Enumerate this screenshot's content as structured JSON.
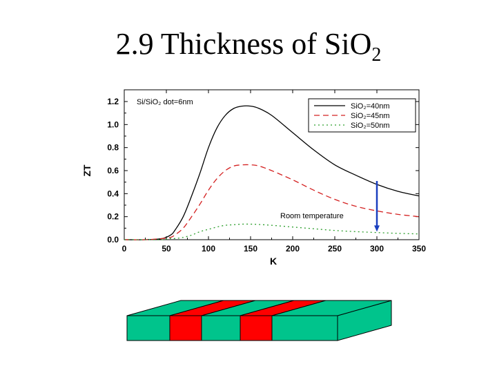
{
  "slide": {
    "title_main": "2.9 Thickness of SiO",
    "title_sub": "2"
  },
  "chart_data": {
    "type": "line",
    "title": "",
    "annotation_top_left": "Si/SiO₂ dot=6nm",
    "annotation_arrow": "Room temperature",
    "arrow_x": 300,
    "arrow_y_from": 0.51,
    "arrow_y_to": 0.07,
    "xlabel": "K",
    "ylabel": "ZT",
    "xlim": [
      0,
      350
    ],
    "ylim": [
      0,
      1.2
    ],
    "x_ticks": [
      0,
      50,
      100,
      150,
      200,
      250,
      300,
      350
    ],
    "y_ticks": [
      0.0,
      0.2,
      0.4,
      0.6,
      0.8,
      1.0,
      1.2
    ],
    "x_tick_labels": [
      "0",
      "50",
      "100",
      "150",
      "200",
      "250",
      "300",
      "350"
    ],
    "y_tick_labels": [
      "0.0",
      "0.2",
      "0.4",
      "0.6",
      "0.8",
      "1.0",
      "1.2"
    ],
    "legend_position": "top-right",
    "x": [
      0,
      25,
      45,
      55,
      60,
      70,
      80,
      90,
      100,
      110,
      120,
      130,
      140,
      150,
      160,
      175,
      200,
      225,
      250,
      275,
      300,
      325,
      350
    ],
    "series": [
      {
        "name": "SiO₂=40nm",
        "color": "#000000",
        "dash": "solid",
        "values": [
          0.0,
          0.0,
          0.01,
          0.04,
          0.08,
          0.2,
          0.38,
          0.58,
          0.8,
          0.97,
          1.08,
          1.14,
          1.16,
          1.16,
          1.14,
          1.08,
          0.93,
          0.78,
          0.65,
          0.56,
          0.48,
          0.42,
          0.38
        ]
      },
      {
        "name": "SiO₂=45nm",
        "color": "#d42020",
        "dash": "dashed",
        "values": [
          0.0,
          0.0,
          0.01,
          0.02,
          0.04,
          0.1,
          0.2,
          0.31,
          0.43,
          0.53,
          0.6,
          0.64,
          0.65,
          0.65,
          0.64,
          0.6,
          0.52,
          0.43,
          0.35,
          0.29,
          0.25,
          0.22,
          0.2
        ]
      },
      {
        "name": "SiO₂=50nm",
        "color": "#2a9d2a",
        "dash": "dotted",
        "values": [
          0.0,
          0.0,
          0.0,
          0.01,
          0.01,
          0.02,
          0.04,
          0.07,
          0.09,
          0.11,
          0.125,
          0.13,
          0.135,
          0.135,
          0.132,
          0.125,
          0.11,
          0.095,
          0.08,
          0.07,
          0.062,
          0.055,
          0.05
        ]
      }
    ]
  },
  "diagram": {
    "segments": [
      "green",
      "red",
      "green",
      "red",
      "green"
    ],
    "colors": {
      "green": "#00c48c",
      "red": "#ff0000",
      "edge": "#000000"
    }
  }
}
